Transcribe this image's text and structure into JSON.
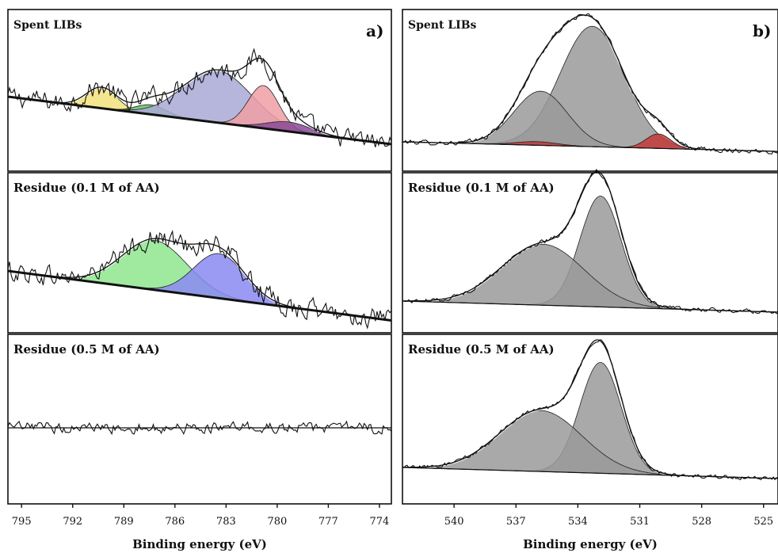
{
  "chart_data": [
    {
      "type": "area",
      "panel_letter": "a)",
      "xlabel": "Binding energy (eV)",
      "xlim": [
        795.8,
        773.3
      ],
      "x_reversed": true,
      "x_ticks": [
        795,
        792,
        789,
        786,
        783,
        780,
        777,
        774
      ],
      "subplots": [
        {
          "label": "Spent LIBs",
          "baseline": {
            "x": [
              795.8,
              773.3
            ],
            "y": [
              0.1,
              -0.4
            ]
          },
          "envelope_noise": 0.16,
          "components": [
            {
              "color": "#f2e27a",
              "center": 790.3,
              "height": 0.22,
              "width": 0.9
            },
            {
              "color": "#66c266",
              "center": 787.4,
              "height": 0.1,
              "width": 0.9
            },
            {
              "color": "#a9a9d6",
              "center": 783.5,
              "height": 0.55,
              "width": 2.0
            },
            {
              "color": "#ef9fa5",
              "center": 780.8,
              "height": 0.45,
              "width": 0.9
            },
            {
              "color": "#8a4b96",
              "center": 779.3,
              "height": 0.1,
              "width": 1.3
            }
          ]
        },
        {
          "label": "Residue (0.1 M of AA)",
          "baseline": {
            "x": [
              795.8,
              773.3
            ],
            "y": [
              0.1,
              -0.4
            ]
          },
          "envelope_noise": 0.16,
          "components": [
            {
              "color": "#8ee68e",
              "center": 787.2,
              "height": 0.5,
              "width": 1.9
            },
            {
              "color": "#8a8af2",
              "center": 783.4,
              "height": 0.45,
              "width": 1.5
            }
          ]
        },
        {
          "label": "Residue (0.5 M of AA)",
          "baseline": {
            "x": [
              795.8,
              773.3
            ],
            "y": [
              0.0,
              0.0
            ]
          },
          "envelope_noise": 0.12,
          "components": []
        }
      ]
    },
    {
      "type": "area",
      "panel_letter": "b)",
      "xlabel": "Binding energy (eV)",
      "xlim": [
        542.5,
        524.3
      ],
      "x_reversed": true,
      "x_ticks": [
        540,
        537,
        534,
        531,
        528,
        525
      ],
      "subplots": [
        {
          "label": "Spent LIBs",
          "baseline": {
            "x": [
              542.5,
              524.3
            ],
            "y": [
              0.0,
              -0.08
            ]
          },
          "envelope_noise": 0.03,
          "components": [
            {
              "color": "#9a9a9a",
              "center": 533.3,
              "height": 1.0,
              "width": 1.55
            },
            {
              "color": "#9a9a9a",
              "center": 535.8,
              "height": 0.45,
              "width": 1.3
            },
            {
              "color": "#c33a3a",
              "center": 530.1,
              "height": 0.12,
              "width": 0.6
            },
            {
              "color": "#c33a3a",
              "center": 536.0,
              "height": 0.03,
              "width": 1.0
            }
          ]
        },
        {
          "label": "Residue (0.1 M of AA)",
          "baseline": {
            "x": [
              542.5,
              524.3
            ],
            "y": [
              0.0,
              -0.1
            ]
          },
          "envelope_noise": 0.03,
          "components": [
            {
              "color": "#9a9a9a",
              "center": 532.9,
              "height": 1.0,
              "width": 1.0
            },
            {
              "color": "#9a9a9a",
              "center": 535.7,
              "height": 0.55,
              "width": 2.0
            }
          ]
        },
        {
          "label": "Residue (0.5 M of AA)",
          "baseline": {
            "x": [
              542.5,
              524.3
            ],
            "y": [
              0.0,
              -0.1
            ]
          },
          "envelope_noise": 0.03,
          "components": [
            {
              "color": "#9a9a9a",
              "center": 532.9,
              "height": 1.0,
              "width": 1.0
            },
            {
              "color": "#9a9a9a",
              "center": 535.8,
              "height": 0.55,
              "width": 2.0
            }
          ]
        }
      ]
    }
  ]
}
